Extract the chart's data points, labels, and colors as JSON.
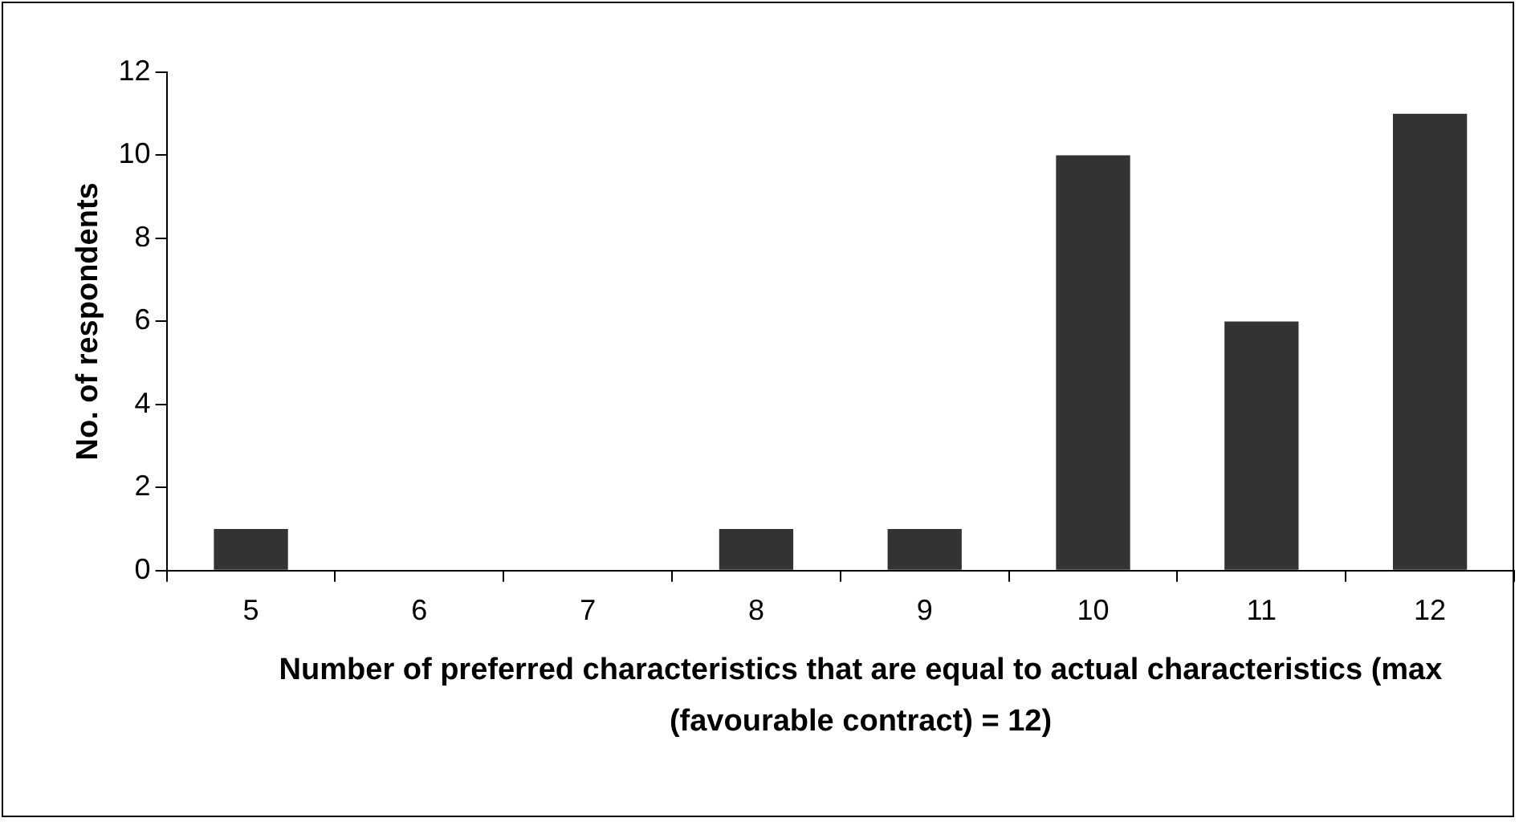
{
  "chart_data": {
    "type": "bar",
    "xlabel": "Number of preferred characteristics that are equal to actual characteristics (max (favourable contract) = 12)",
    "ylabel": "No. of respondents",
    "categories": [
      "5",
      "6",
      "7",
      "8",
      "9",
      "10",
      "11",
      "12"
    ],
    "values": [
      1,
      0,
      0,
      1,
      1,
      10,
      6,
      11
    ],
    "color": "#333333",
    "ylim": [
      0,
      12
    ],
    "yticks": [
      0,
      2,
      4,
      6,
      8,
      10,
      12
    ],
    "grid": false,
    "legend": false
  }
}
